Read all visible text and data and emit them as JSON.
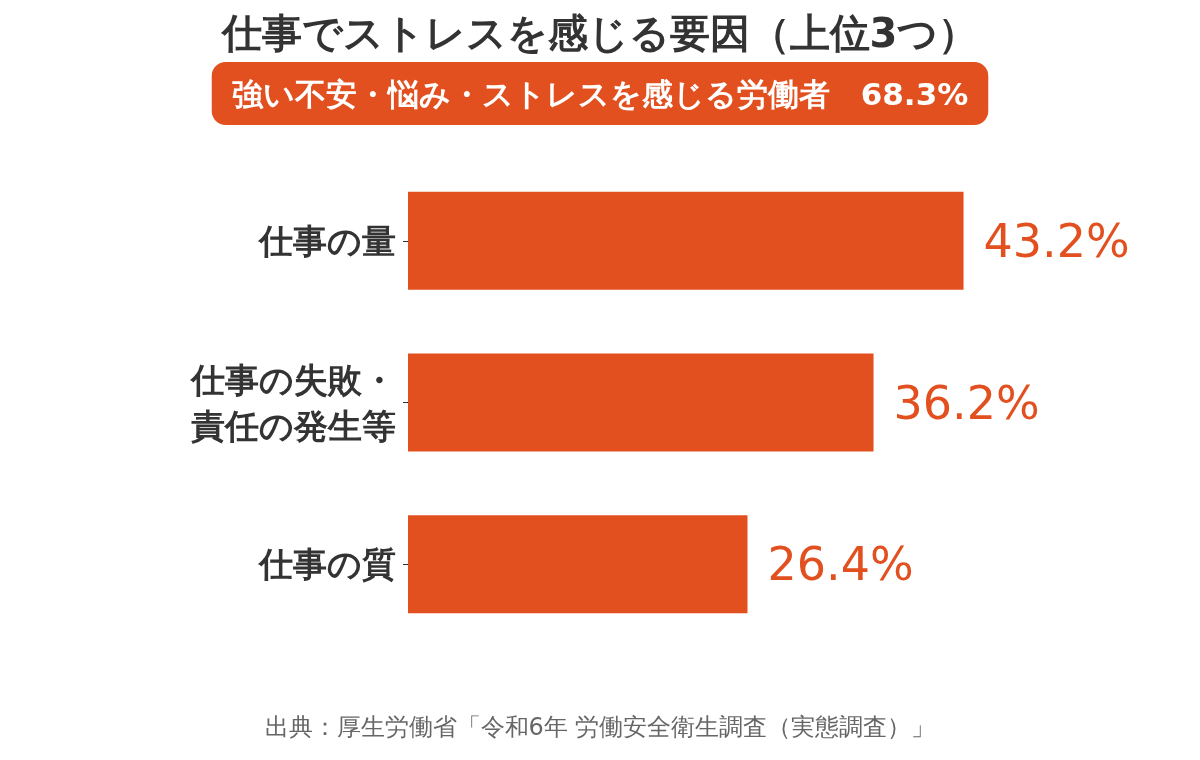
{
  "chart_data": {
    "type": "bar",
    "orientation": "horizontal",
    "title": "仕事でストレスを感じる要因（上位3つ）",
    "subtitle": "強い不安・悩み・ストレスを感じる労働者　68.3%",
    "categories": [
      "仕事の量",
      "仕事の失敗・責任の発生等",
      "仕事の質"
    ],
    "values": [
      43.2,
      36.2,
      26.4
    ],
    "value_labels": [
      "43.2%",
      "36.2%",
      "26.4%"
    ],
    "color": "#e2501f",
    "annotations": [
      "出典：厚生労働省「令和6年 労働安全衛生調査（実態調査）」"
    ]
  }
}
